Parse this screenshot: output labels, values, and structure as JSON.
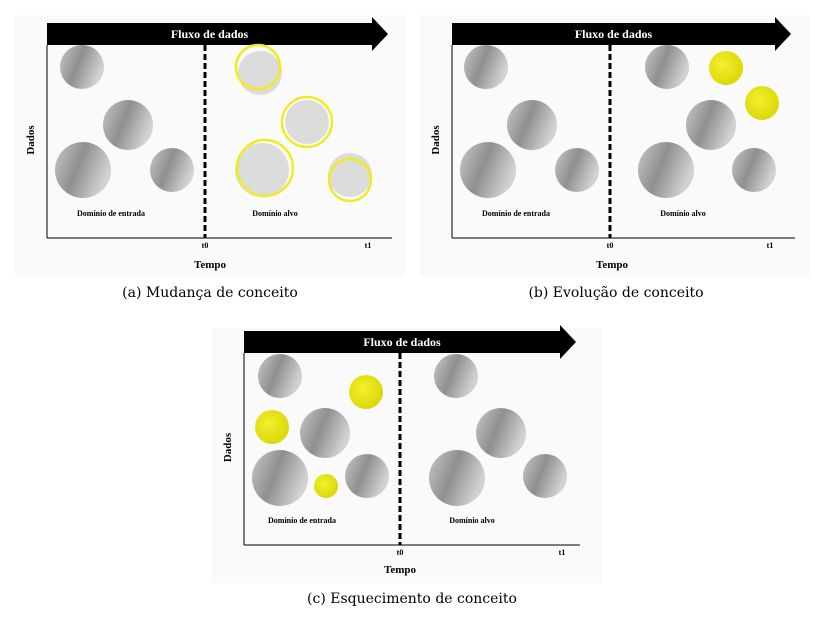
{
  "panels": [
    {
      "arrow_label": "Fluxo de dados",
      "y_label": "Dados",
      "x_label": "Tempo",
      "source_label": "Domínio de entrada",
      "target_label": "Domínio alvo",
      "t0": "t0",
      "t1": "t1",
      "caption": "(a) Mudança de conceito"
    },
    {
      "arrow_label": "Fluxo de dados",
      "y_label": "Dados",
      "x_label": "Tempo",
      "source_label": "Domínio de entrada",
      "target_label": "Domínio alvo",
      "t0": "t0",
      "t1": "t1",
      "caption": "(b) Evolução de conceito"
    },
    {
      "arrow_label": "Fluxo de dados",
      "y_label": "Dados",
      "x_label": "Tempo",
      "source_label": "Domínio de entrada",
      "target_label": "Domínio alvo",
      "t0": "t0",
      "t1": "t1",
      "caption": "(c) Esquecimento de conceito"
    }
  ]
}
